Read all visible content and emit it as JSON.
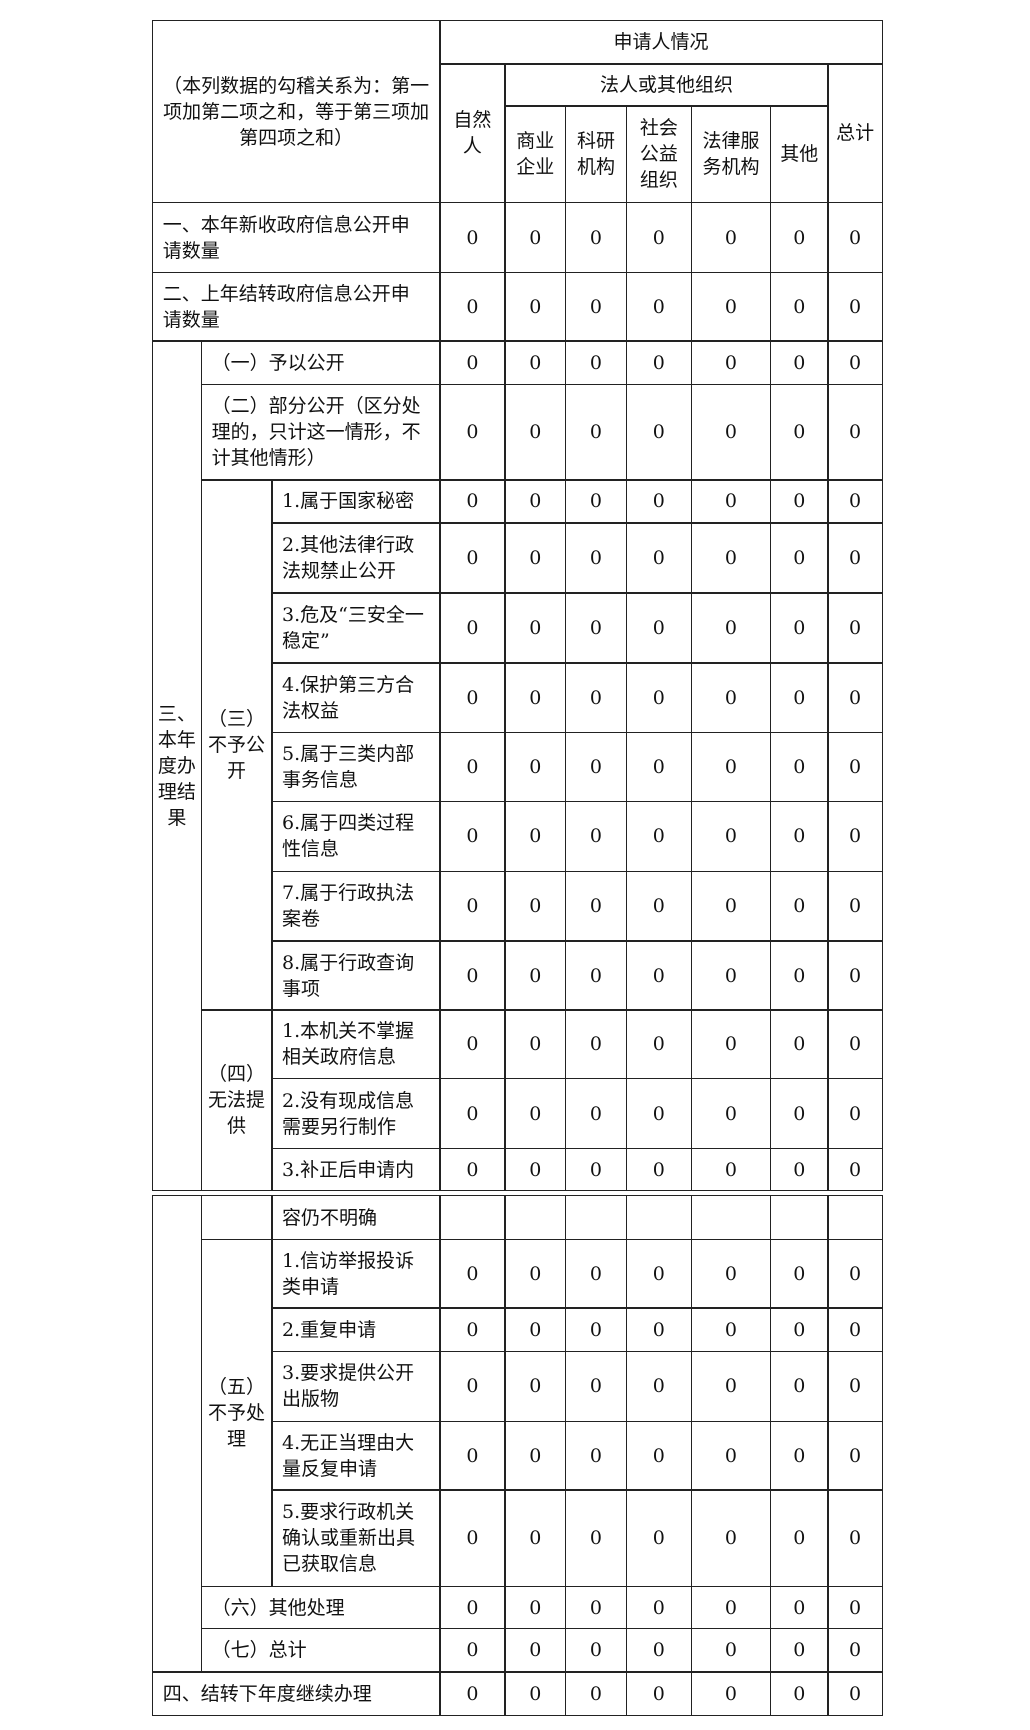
{
  "header": {
    "note": "（本列数据的勾稽关系为：第一项加第二项之和，等于第三项加第四项之和）",
    "title": "申请人情况",
    "natural_person": "自然人",
    "legal_group": "法人或其他组织",
    "legal_columns": [
      "商业企业",
      "科研机构",
      "社会公益组织",
      "法律服务机构",
      "其他"
    ],
    "total": "总计"
  },
  "groups": {
    "section": "三、本年度办理结果",
    "not_disclosed": "（三）不予公开",
    "cannot_provide": "（四）无法提供",
    "not_handled": "（五）不予处理"
  },
  "rows": [
    {
      "label": "一、本年新收政府信息公开申请数量",
      "values": [
        0,
        0,
        0,
        0,
        0,
        0,
        0
      ]
    },
    {
      "label": "二、上年结转政府信息公开申请数量",
      "values": [
        0,
        0,
        0,
        0,
        0,
        0,
        0
      ]
    },
    {
      "label": "（一）予以公开",
      "values": [
        0,
        0,
        0,
        0,
        0,
        0,
        0
      ]
    },
    {
      "label": "（二）部分公开（区分处理的，只计这一情形，不计其他情形）",
      "values": [
        0,
        0,
        0,
        0,
        0,
        0,
        0
      ]
    },
    {
      "label": "1.属于国家秘密",
      "values": [
        0,
        0,
        0,
        0,
        0,
        0,
        0
      ]
    },
    {
      "label": "2.其他法律行政法规禁止公开",
      "values": [
        0,
        0,
        0,
        0,
        0,
        0,
        0
      ]
    },
    {
      "label": "3.危及“三安全一稳定”",
      "values": [
        0,
        0,
        0,
        0,
        0,
        0,
        0
      ]
    },
    {
      "label": "4.保护第三方合法权益",
      "values": [
        0,
        0,
        0,
        0,
        0,
        0,
        0
      ]
    },
    {
      "label": "5.属于三类内部事务信息",
      "values": [
        0,
        0,
        0,
        0,
        0,
        0,
        0
      ]
    },
    {
      "label": "6.属于四类过程性信息",
      "values": [
        0,
        0,
        0,
        0,
        0,
        0,
        0
      ]
    },
    {
      "label": "7.属于行政执法案卷",
      "values": [
        0,
        0,
        0,
        0,
        0,
        0,
        0
      ]
    },
    {
      "label": "8.属于行政查询事项",
      "values": [
        0,
        0,
        0,
        0,
        0,
        0,
        0
      ]
    },
    {
      "label": "1.本机关不掌握相关政府信息",
      "values": [
        0,
        0,
        0,
        0,
        0,
        0,
        0
      ]
    },
    {
      "label": "2.没有现成信息需要另行制作",
      "values": [
        0,
        0,
        0,
        0,
        0,
        0,
        0
      ]
    },
    {
      "label": "3.补正后申请内",
      "values": [
        0,
        0,
        0,
        0,
        0,
        0,
        0
      ]
    },
    {
      "label": "1.信访举报投诉类申请",
      "values": [
        0,
        0,
        0,
        0,
        0,
        0,
        0
      ]
    },
    {
      "label": "2.重复申请",
      "values": [
        0,
        0,
        0,
        0,
        0,
        0,
        0
      ]
    },
    {
      "label": "3.要求提供公开出版物",
      "values": [
        0,
        0,
        0,
        0,
        0,
        0,
        0
      ]
    },
    {
      "label": "4.无正当理由大量反复申请",
      "values": [
        0,
        0,
        0,
        0,
        0,
        0,
        0
      ]
    },
    {
      "label": "5.要求行政机关确认或重新出具已获取信息",
      "values": [
        0,
        0,
        0,
        0,
        0,
        0,
        0
      ]
    },
    {
      "label": "（六）其他处理",
      "values": [
        0,
        0,
        0,
        0,
        0,
        0,
        0
      ]
    },
    {
      "label": "（七）总计",
      "values": [
        0,
        0,
        0,
        0,
        0,
        0,
        0
      ]
    },
    {
      "label": "四、结转下年度继续办理",
      "values": [
        0,
        0,
        0,
        0,
        0,
        0,
        0
      ]
    }
  ],
  "continuation": "容仍不明确"
}
